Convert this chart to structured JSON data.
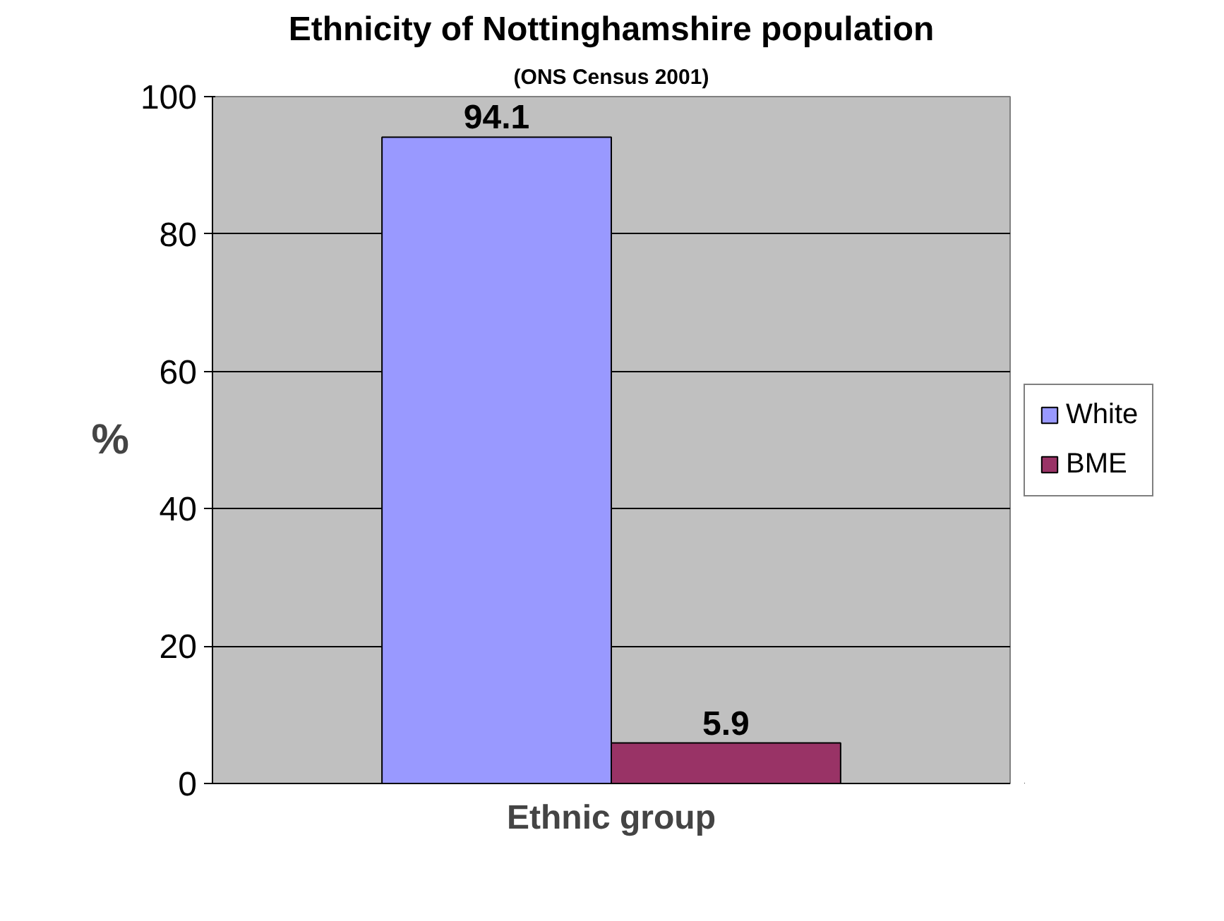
{
  "chart_data": {
    "type": "bar",
    "title": "Ethnicity of Nottinghamshire population",
    "subtitle": "(ONS Census 2001)",
    "xlabel": "Ethnic group",
    "ylabel": "%",
    "categories": [
      null
    ],
    "series": [
      {
        "name": "White",
        "color": "#9999ff",
        "values": [
          94.1
        ]
      },
      {
        "name": "BME",
        "color": "#993366",
        "values": [
          5.9
        ]
      }
    ],
    "ylim": [
      0,
      100
    ],
    "yticks": [
      0,
      20,
      40,
      60,
      80,
      100
    ],
    "grid": "y",
    "legend": "right",
    "data_labels": true
  }
}
